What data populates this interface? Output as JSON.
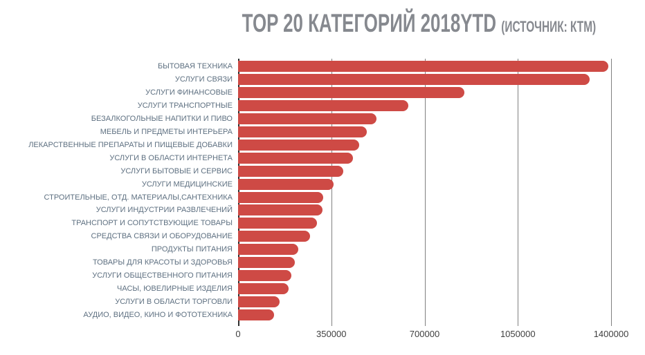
{
  "title": {
    "main": "TOP 20 КАТЕГОРИЙ 2018YTD",
    "source": "(ИСТОЧНИК: КТМ)"
  },
  "colors": {
    "bar": "#ce4a45",
    "gridline": "#808080",
    "zero_axis": "#2f2f2f",
    "category_label": "#5e7081",
    "tick_label": "#3f3f3f",
    "title": "#86898f"
  },
  "chart_data": {
    "type": "bar",
    "orientation": "horizontal",
    "title": "TOP 20 КАТЕГОРИЙ 2018YTD (ИСТОЧНИК: КТМ)",
    "xlabel": "",
    "ylabel": "",
    "xlim": [
      0,
      1400000
    ],
    "x_ticks": [
      0,
      350000,
      700000,
      1050000,
      1400000
    ],
    "grid": true,
    "legend": false,
    "categories": [
      "БЫТОВАЯ ТЕХНИКА",
      "УСЛУГИ СВЯЗИ",
      "УСЛУГИ ФИНАНСОВЫЕ",
      "УСЛУГИ ТРАНСПОРТНЫЕ",
      "БЕЗАЛКОГОЛЬНЫЕ НАПИТКИ И ПИВО",
      "МЕБЕЛЬ И ПРЕДМЕТЫ ИНТЕРЬЕРА",
      "ЛЕКАРСТВЕННЫЕ ПРЕПАРАТЫ И ПИЩЕВЫЕ ДОБАВКИ",
      "УСЛУГИ В ОБЛАСТИ ИНТЕРНЕТА",
      "УСЛУГИ БЫТОВЫЕ И СЕРВИС",
      "УСЛУГИ МЕДИЦИНСКИЕ",
      "СТРОИТЕЛЬНЫЕ, ОТД. МАТЕРИАЛЫ,САНТЕХНИКА",
      "УСЛУГИ ИНДУСТРИИ РАЗВЛЕЧЕНИЙ",
      "ТРАНСПОРТ И СОПУТСТВУЮЩИЕ ТОВАРЫ",
      "СРЕДСТВА СВЯЗИ И ОБОРУДОВАНИЕ",
      "ПРОДУКТЫ ПИТАНИЯ",
      "ТОВАРЫ ДЛЯ КРАСОТЫ И ЗДОРОВЬЯ",
      "УСЛУГИ ОБЩЕСТВЕННОГО ПИТАНИЯ",
      "ЧАСЫ, ЮВЕЛИРНЫЕ ИЗДЕЛИЯ",
      "УСЛУГИ В ОБЛАСТИ ТОРГОВЛИ",
      "АУДИО, ВИДЕО, КИНО И ФОТОТЕХНИКА"
    ],
    "values": [
      1390000,
      1320000,
      850000,
      640000,
      520000,
      483000,
      455000,
      430000,
      396000,
      358000,
      320000,
      316000,
      295000,
      270000,
      226000,
      213000,
      200000,
      190000,
      156000,
      136000
    ]
  }
}
